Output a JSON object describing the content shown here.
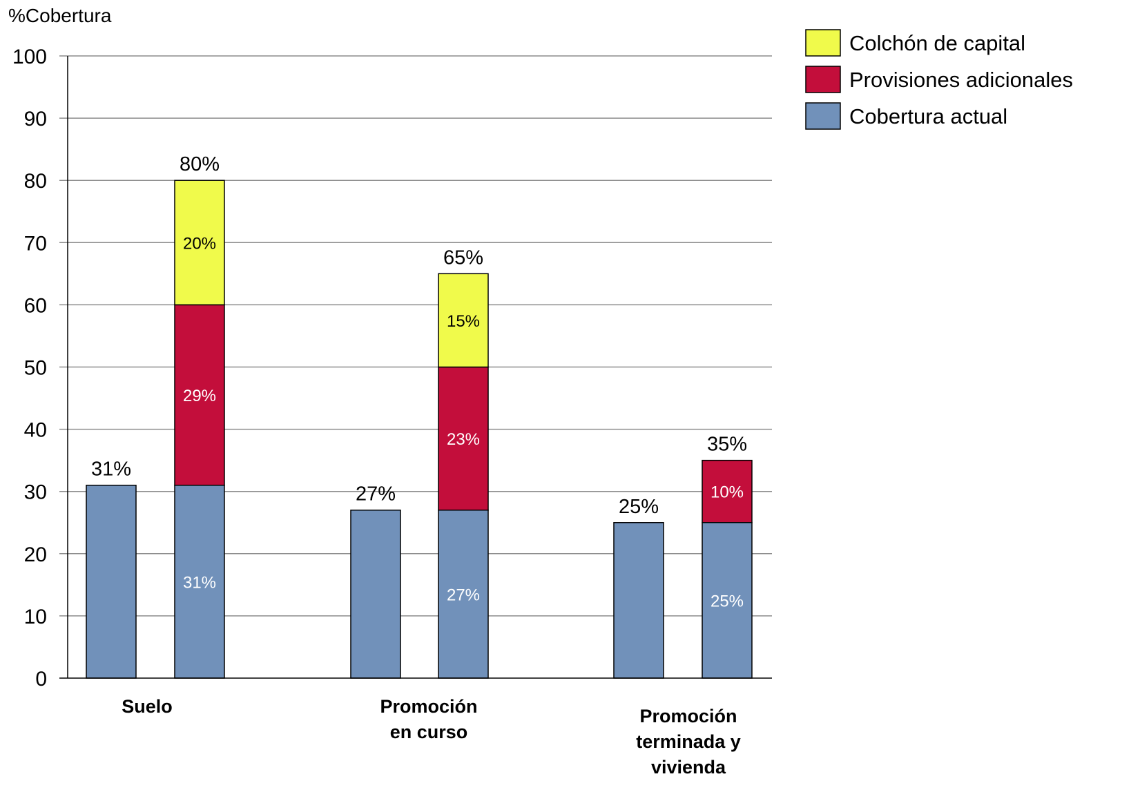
{
  "chart_data": {
    "type": "bar",
    "ylabel": "%Cobertura",
    "ylim": [
      0,
      100
    ],
    "yticks": [
      "0",
      "10",
      "20",
      "30",
      "40",
      "50",
      "60",
      "70",
      "80",
      "90",
      "100"
    ],
    "grid": true,
    "legend_position": "top-right",
    "categories": [
      "Suelo",
      "Promoción en curso",
      "Promoción terminada y vivienda"
    ],
    "category_label_lines": [
      [
        "Suelo"
      ],
      [
        "Promoción",
        "en curso"
      ],
      [
        "Promoción",
        "terminada y",
        "vivienda"
      ]
    ],
    "series": [
      {
        "name": "Cobertura actual",
        "color": "#7191BA",
        "label_color": "#ffffff"
      },
      {
        "name": "Provisiones adicionales",
        "color": "#C30E3B",
        "label_color": "#ffffff"
      },
      {
        "name": "Colchón de capital",
        "color": "#F0FA4B",
        "label_color": "#000000"
      }
    ],
    "legend_order": [
      "Colchón de capital",
      "Provisiones adicionales",
      "Cobertura actual"
    ],
    "bars": [
      {
        "category": "Suelo",
        "segments": [
          31
        ],
        "segment_labels": [
          ""
        ],
        "total_label": "31%"
      },
      {
        "category": "Suelo",
        "segments": [
          31,
          29,
          20
        ],
        "segment_labels": [
          "31%",
          "29%",
          "20%"
        ],
        "total_label": "80%"
      },
      {
        "category": "Promoción en curso",
        "segments": [
          27
        ],
        "segment_labels": [
          ""
        ],
        "total_label": "27%"
      },
      {
        "category": "Promoción en curso",
        "segments": [
          27,
          23,
          15
        ],
        "segment_labels": [
          "27%",
          "23%",
          "15%"
        ],
        "total_label": "65%"
      },
      {
        "category": "Promoción terminada y vivienda",
        "segments": [
          25
        ],
        "segment_labels": [
          ""
        ],
        "total_label": "25%"
      },
      {
        "category": "Promoción terminada y vivienda",
        "segments": [
          25,
          10
        ],
        "segment_labels": [
          "25%",
          "10%"
        ],
        "total_label": "35%"
      }
    ]
  }
}
